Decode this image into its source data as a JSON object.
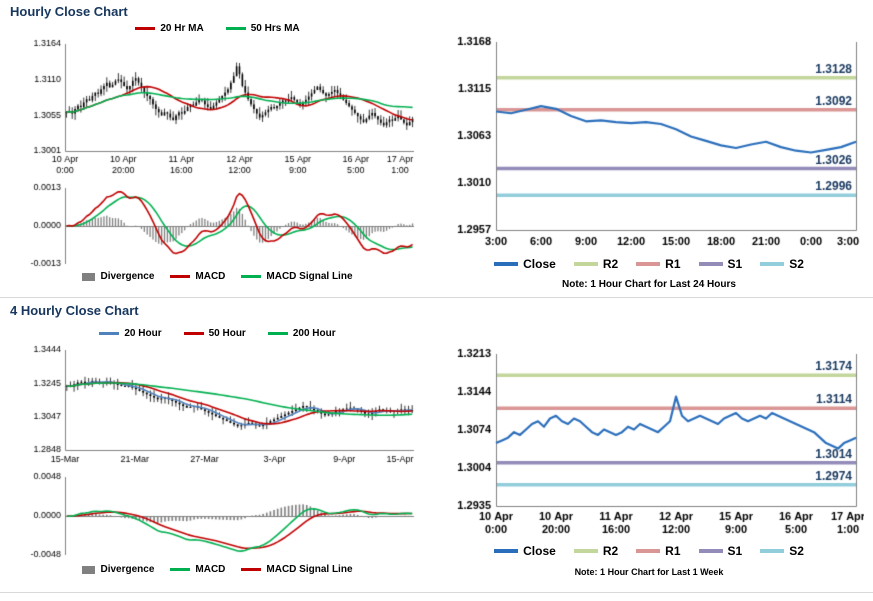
{
  "sections": [
    {
      "title": "Hourly Close Chart"
    },
    {
      "title": "4 Hourly Close Chart"
    }
  ],
  "colors": {
    "close": "#2A6EBB",
    "macd_red": "#C00000",
    "macd_green": "#00B050",
    "ma_blue": "#4F81BD",
    "divergence": "#808080",
    "axis": "#808080",
    "title": "#17375E",
    "pivot_label": "#17375E",
    "divider": "#D9D9D9"
  },
  "chart_data": [
    {
      "id": "hourly_candle",
      "type": "candlestick",
      "ylim": [
        1.3001,
        1.3164
      ],
      "yticks": [
        "1.3164",
        "1.3110",
        "1.3055",
        "1.3001"
      ],
      "xticks": [
        [
          "10 Apr",
          "0:00"
        ],
        [
          "10 Apr",
          "20:00"
        ],
        [
          "11 Apr",
          "16:00"
        ],
        [
          "12 Apr",
          "12:00"
        ],
        [
          "15 Apr",
          "9:00"
        ],
        [
          "16 Apr",
          "5:00"
        ],
        [
          "17 Apr",
          "1:00"
        ]
      ],
      "ma": [
        {
          "label": "20 Hr MA",
          "period": 20,
          "color": "#C00000"
        },
        {
          "label": "50 Hrs MA",
          "period": 50,
          "color": "#00B050"
        }
      ],
      "close": [
        1.306,
        1.3062,
        1.3058,
        1.3065,
        1.307,
        1.3068,
        1.3075,
        1.308,
        1.3078,
        1.3085,
        1.309,
        1.3088,
        1.3095,
        1.31,
        1.3105,
        1.3098,
        1.3102,
        1.3108,
        1.311,
        1.3106,
        1.31,
        1.3095,
        1.31,
        1.3108,
        1.3112,
        1.3105,
        1.3098,
        1.309,
        1.3085,
        1.308,
        1.3072,
        1.3065,
        1.306,
        1.3055,
        1.306,
        1.3058,
        1.3052,
        1.3048,
        1.3055,
        1.306,
        1.3058,
        1.3062,
        1.3068,
        1.3072,
        1.307,
        1.3075,
        1.308,
        1.3078,
        1.3072,
        1.3068,
        1.3065,
        1.307,
        1.3075,
        1.308,
        1.3085,
        1.309,
        1.3095,
        1.3105,
        1.3115,
        1.313,
        1.3118,
        1.31,
        1.309,
        1.308,
        1.3072,
        1.3065,
        1.3058,
        1.3052,
        1.3056,
        1.306,
        1.3064,
        1.3068,
        1.3066,
        1.307,
        1.3074,
        1.3078,
        1.3076,
        1.308,
        1.3083,
        1.3079,
        1.3075,
        1.307,
        1.3074,
        1.3079,
        1.3084,
        1.3089,
        1.3094,
        1.3099,
        1.3094,
        1.3089,
        1.3085,
        1.3088,
        1.3091,
        1.3094,
        1.3089,
        1.3084,
        1.3079,
        1.3074,
        1.3069,
        1.3064,
        1.3059,
        1.3054,
        1.3049,
        1.3045,
        1.305,
        1.3055,
        1.3059,
        1.3054,
        1.3049,
        1.3044,
        1.304,
        1.3045,
        1.3049,
        1.3047,
        1.3051,
        1.3054,
        1.3049,
        1.3044,
        1.304,
        1.3045,
        1.305
      ],
      "macd": {
        "ylim": [
          -0.0013,
          0.0013
        ],
        "yticks": [
          "0.0013",
          "0.0000",
          "-0.0013"
        ],
        "legend": [
          {
            "label": "Divergence",
            "color": "#808080",
            "type": "bar"
          },
          {
            "label": "MACD",
            "color": "#C00000",
            "type": "line"
          },
          {
            "label": "MACD Signal Line",
            "color": "#00B050",
            "type": "line"
          }
        ]
      }
    },
    {
      "id": "hourly_close_pivots",
      "type": "line",
      "close_label": "Close",
      "ylim": [
        1.2957,
        1.3168
      ],
      "yticks": [
        "1.3168",
        "1.3115",
        "1.3063",
        "1.3010",
        "1.2957"
      ],
      "xticks": [
        "3:00",
        "6:00",
        "9:00",
        "12:00",
        "15:00",
        "18:00",
        "21:00",
        "0:00",
        "3:00"
      ],
      "pivots": [
        {
          "label": "R2",
          "value": 1.3128,
          "display": "1.3128",
          "color": "#C3D69B"
        },
        {
          "label": "R1",
          "value": 1.3092,
          "display": "1.3092",
          "color": "#DA9694"
        },
        {
          "label": "S1",
          "value": 1.3026,
          "display": "1.3026",
          "color": "#938CB9"
        },
        {
          "label": "S2",
          "value": 1.2996,
          "display": "1.2996",
          "color": "#92CDDC"
        }
      ],
      "close": [
        1.309,
        1.3088,
        1.3092,
        1.3096,
        1.3093,
        1.3085,
        1.3079,
        1.308,
        1.3078,
        1.3077,
        1.3078,
        1.3076,
        1.307,
        1.3062,
        1.3057,
        1.3052,
        1.3049,
        1.3053,
        1.3056,
        1.305,
        1.3046,
        1.3044,
        1.3047,
        1.305,
        1.3056
      ],
      "note": "Note: 1 Hour Chart for Last 24 Hours"
    },
    {
      "id": "four_hourly_candle",
      "type": "candlestick",
      "ylim": [
        1.2848,
        1.3444
      ],
      "yticks": [
        "1.3444",
        "1.3245",
        "1.3047",
        "1.2848"
      ],
      "xticks": [
        "15-Mar",
        "21-Mar",
        "27-Mar",
        "3-Apr",
        "9-Apr",
        "15-Apr"
      ],
      "ma": [
        {
          "label": "20 Hour",
          "period": 5,
          "color": "#4F81BD"
        },
        {
          "label": "50 Hour",
          "period": 13,
          "color": "#C00000"
        },
        {
          "label": "200 Hour",
          "period": 50,
          "color": "#00B050"
        }
      ],
      "close": [
        1.323,
        1.3225,
        1.324,
        1.325,
        1.3255,
        1.3245,
        1.325,
        1.326,
        1.3255,
        1.3248,
        1.3252,
        1.3258,
        1.325,
        1.3242,
        1.3238,
        1.323,
        1.3225,
        1.323,
        1.322,
        1.321,
        1.32,
        1.319,
        1.318,
        1.317,
        1.316,
        1.315,
        1.3155,
        1.316,
        1.315,
        1.314,
        1.313,
        1.312,
        1.311,
        1.31,
        1.3105,
        1.311,
        1.31,
        1.309,
        1.308,
        1.307,
        1.306,
        1.305,
        1.304,
        1.303,
        1.302,
        1.301,
        1.3,
        1.299,
        1.2995,
        1.3,
        1.301,
        1.3005,
        1.2995,
        1.299,
        1.3,
        1.301,
        1.302,
        1.303,
        1.304,
        1.305,
        1.306,
        1.307,
        1.308,
        1.309,
        1.31,
        1.311,
        1.3105,
        1.3095,
        1.3085,
        1.3075,
        1.3065,
        1.3055,
        1.306,
        1.307,
        1.308,
        1.3085,
        1.309,
        1.3095,
        1.31,
        1.3095,
        1.3085,
        1.3075,
        1.3065,
        1.306,
        1.307,
        1.308,
        1.309,
        1.3085,
        1.308,
        1.3075,
        1.308,
        1.3085,
        1.309,
        1.3088,
        1.3085,
        1.3082
      ],
      "macd": {
        "ylim": [
          -0.0048,
          0.0048
        ],
        "yticks": [
          "0.0048",
          "0.0000",
          "-0.0048"
        ],
        "legend": [
          {
            "label": "Divergence",
            "color": "#808080",
            "type": "bar"
          },
          {
            "label": "MACD",
            "color": "#00B050",
            "type": "line"
          },
          {
            "label": "MACD Signal Line",
            "color": "#C00000",
            "type": "line"
          }
        ]
      }
    },
    {
      "id": "weekly_close_pivots",
      "type": "line",
      "close_label": "Close",
      "ylim": [
        1.2935,
        1.3213
      ],
      "yticks": [
        "1.3213",
        "1.3144",
        "1.3074",
        "1.3004",
        "1.2935"
      ],
      "xticks": [
        [
          "10 Apr",
          "0:00"
        ],
        [
          "10 Apr",
          "20:00"
        ],
        [
          "11 Apr",
          "16:00"
        ],
        [
          "12 Apr",
          "12:00"
        ],
        [
          "15 Apr",
          "9:00"
        ],
        [
          "16 Apr",
          "5:00"
        ],
        [
          "17 Apr",
          "1:00"
        ]
      ],
      "pivots": [
        {
          "label": "R2",
          "value": 1.3174,
          "display": "1.3174",
          "color": "#C3D69B"
        },
        {
          "label": "R1",
          "value": 1.3114,
          "display": "1.3114",
          "color": "#DA9694"
        },
        {
          "label": "S1",
          "value": 1.3014,
          "display": "1.3014",
          "color": "#938CB9"
        },
        {
          "label": "S2",
          "value": 1.2974,
          "display": "1.2974",
          "color": "#92CDDC"
        }
      ],
      "close": [
        1.305,
        1.3055,
        1.306,
        1.307,
        1.3065,
        1.3075,
        1.3085,
        1.309,
        1.308,
        1.3095,
        1.31,
        1.309,
        1.3085,
        1.3095,
        1.309,
        1.308,
        1.307,
        1.3065,
        1.3075,
        1.307,
        1.3065,
        1.307,
        1.308,
        1.3075,
        1.3085,
        1.308,
        1.3075,
        1.307,
        1.308,
        1.309,
        1.3135,
        1.31,
        1.309,
        1.3095,
        1.31,
        1.3095,
        1.309,
        1.3085,
        1.3095,
        1.31,
        1.3105,
        1.3095,
        1.309,
        1.3095,
        1.31,
        1.3095,
        1.3105,
        1.31,
        1.3095,
        1.309,
        1.3085,
        1.308,
        1.3075,
        1.307,
        1.306,
        1.305,
        1.3045,
        1.304,
        1.305,
        1.3055,
        1.306
      ],
      "note": "Note: 1 Hour Chart for Last 1 Week"
    }
  ]
}
